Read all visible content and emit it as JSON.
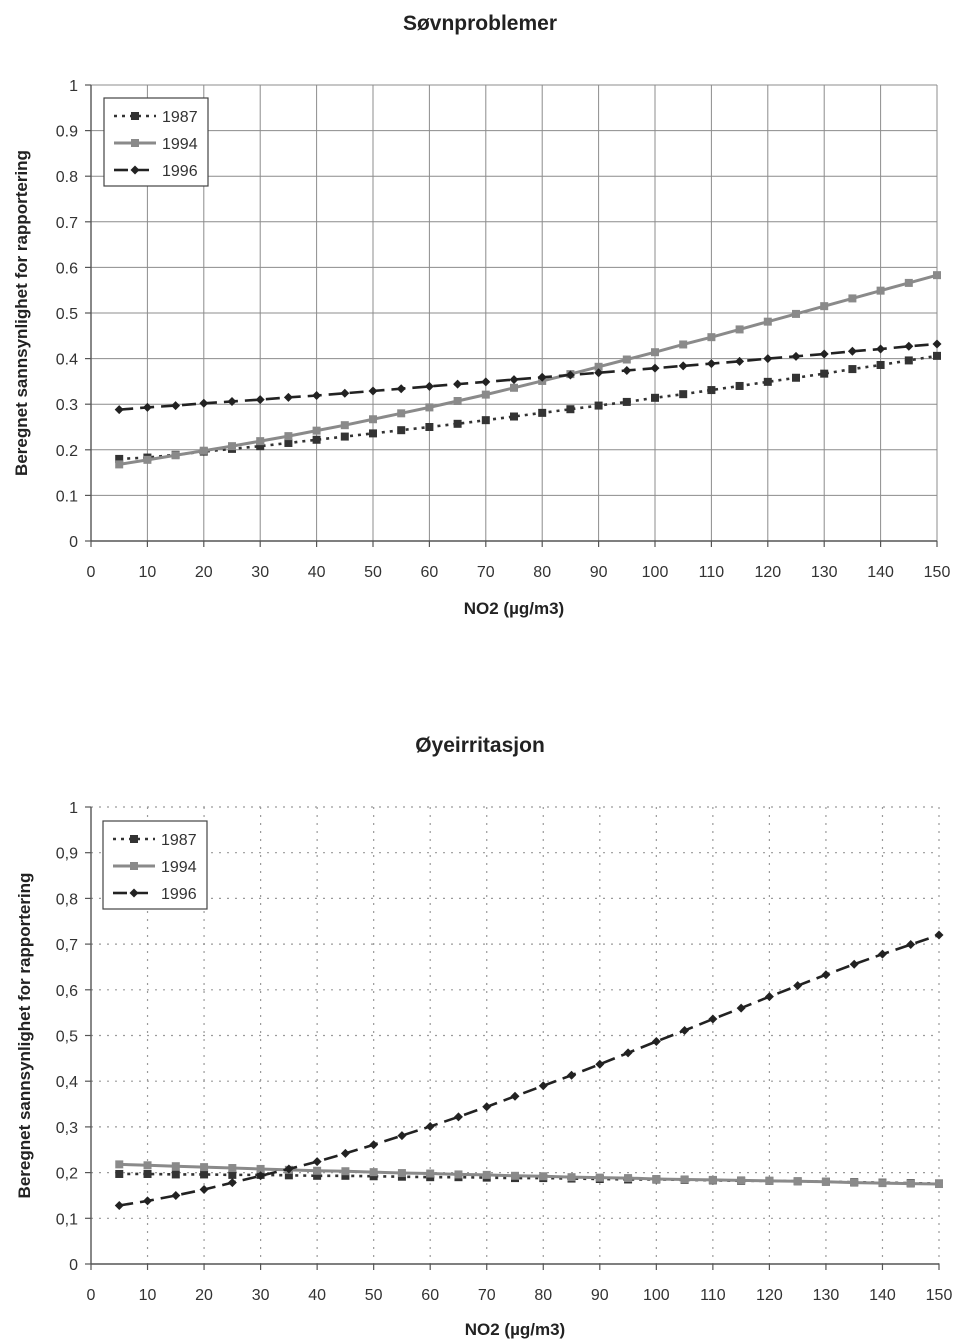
{
  "chart_data": [
    {
      "type": "line",
      "title": "Søvnproblemer",
      "xlabel": "NO2 (µg/m3)",
      "ylabel": "Beregnet sannsynlighet for rapportering",
      "xlim": [
        0,
        150
      ],
      "ylim": [
        0,
        1
      ],
      "x_ticks": [
        "0",
        "10",
        "20",
        "30",
        "40",
        "50",
        "60",
        "70",
        "80",
        "90",
        "100",
        "110",
        "120",
        "130",
        "140",
        "150"
      ],
      "y_ticks": [
        "0",
        "0.1",
        "0.2",
        "0.3",
        "0.4",
        "0.5",
        "0.6",
        "0.7",
        "0.8",
        "0.9",
        "1"
      ],
      "grid": "solid",
      "legend_position": "top-left",
      "x": [
        5,
        10,
        15,
        20,
        25,
        30,
        35,
        40,
        45,
        50,
        55,
        60,
        65,
        70,
        75,
        80,
        85,
        90,
        95,
        100,
        105,
        110,
        115,
        120,
        125,
        130,
        135,
        140,
        145,
        150
      ],
      "series": [
        {
          "name": "1987",
          "marker": "square",
          "line": "dotted",
          "values": [
            0.18,
            0.183,
            0.189,
            0.196,
            0.202,
            0.208,
            0.215,
            0.222,
            0.229,
            0.236,
            0.243,
            0.25,
            0.257,
            0.265,
            0.273,
            0.281,
            0.289,
            0.297,
            0.305,
            0.314,
            0.322,
            0.331,
            0.34,
            0.349,
            0.358,
            0.367,
            0.377,
            0.386,
            0.396,
            0.406
          ]
        },
        {
          "name": "1994",
          "marker": "square",
          "line": "solid",
          "values": [
            0.168,
            0.178,
            0.188,
            0.198,
            0.208,
            0.219,
            0.23,
            0.242,
            0.254,
            0.267,
            0.28,
            0.293,
            0.307,
            0.321,
            0.336,
            0.351,
            0.366,
            0.382,
            0.398,
            0.414,
            0.431,
            0.447,
            0.464,
            0.481,
            0.498,
            0.515,
            0.532,
            0.549,
            0.566,
            0.583
          ]
        },
        {
          "name": "1996",
          "marker": "diamond",
          "line": "dashed",
          "values": [
            0.288,
            0.293,
            0.297,
            0.302,
            0.306,
            0.31,
            0.315,
            0.319,
            0.324,
            0.329,
            0.334,
            0.339,
            0.344,
            0.349,
            0.354,
            0.359,
            0.364,
            0.369,
            0.374,
            0.379,
            0.384,
            0.389,
            0.394,
            0.4,
            0.405,
            0.41,
            0.416,
            0.421,
            0.427,
            0.432
          ]
        }
      ]
    },
    {
      "type": "line",
      "title": "Øyeirritasjon",
      "xlabel": "NO2 (µg/m3)",
      "ylabel": "Beregnet sannsynlighet for rapportering",
      "xlim": [
        0,
        150
      ],
      "ylim": [
        0,
        1
      ],
      "x_ticks": [
        "0",
        "10",
        "20",
        "30",
        "40",
        "50",
        "60",
        "70",
        "80",
        "90",
        "100",
        "110",
        "120",
        "130",
        "140",
        "150"
      ],
      "y_ticks": [
        "0",
        "0,1",
        "0,2",
        "0,3",
        "0,4",
        "0,5",
        "0,6",
        "0,7",
        "0,8",
        "0,9",
        "1"
      ],
      "grid": "dotted",
      "legend_position": "top-left",
      "x": [
        5,
        10,
        15,
        20,
        25,
        30,
        35,
        40,
        45,
        50,
        55,
        60,
        65,
        70,
        75,
        80,
        85,
        90,
        95,
        100,
        105,
        110,
        115,
        120,
        125,
        130,
        135,
        140,
        145,
        150
      ],
      "series": [
        {
          "name": "1987",
          "marker": "square",
          "line": "dotted",
          "values": [
            0.197,
            0.197,
            0.196,
            0.196,
            0.195,
            0.195,
            0.194,
            0.193,
            0.193,
            0.192,
            0.191,
            0.19,
            0.19,
            0.189,
            0.188,
            0.188,
            0.187,
            0.186,
            0.185,
            0.185,
            0.184,
            0.183,
            0.182,
            0.182,
            0.181,
            0.18,
            0.179,
            0.178,
            0.177,
            0.176
          ]
        },
        {
          "name": "1994",
          "marker": "square",
          "line": "solid",
          "values": [
            0.218,
            0.216,
            0.214,
            0.212,
            0.21,
            0.208,
            0.206,
            0.204,
            0.203,
            0.201,
            0.199,
            0.198,
            0.196,
            0.195,
            0.193,
            0.192,
            0.19,
            0.189,
            0.188,
            0.186,
            0.185,
            0.184,
            0.183,
            0.182,
            0.181,
            0.18,
            0.178,
            0.177,
            0.176,
            0.175
          ]
        },
        {
          "name": "1996",
          "marker": "diamond",
          "line": "dashed",
          "values": [
            0.128,
            0.138,
            0.15,
            0.163,
            0.178,
            0.193,
            0.208,
            0.224,
            0.242,
            0.261,
            0.281,
            0.301,
            0.322,
            0.344,
            0.367,
            0.39,
            0.413,
            0.437,
            0.462,
            0.487,
            0.511,
            0.536,
            0.56,
            0.585,
            0.609,
            0.633,
            0.656,
            0.678,
            0.699,
            0.72
          ]
        }
      ]
    }
  ]
}
